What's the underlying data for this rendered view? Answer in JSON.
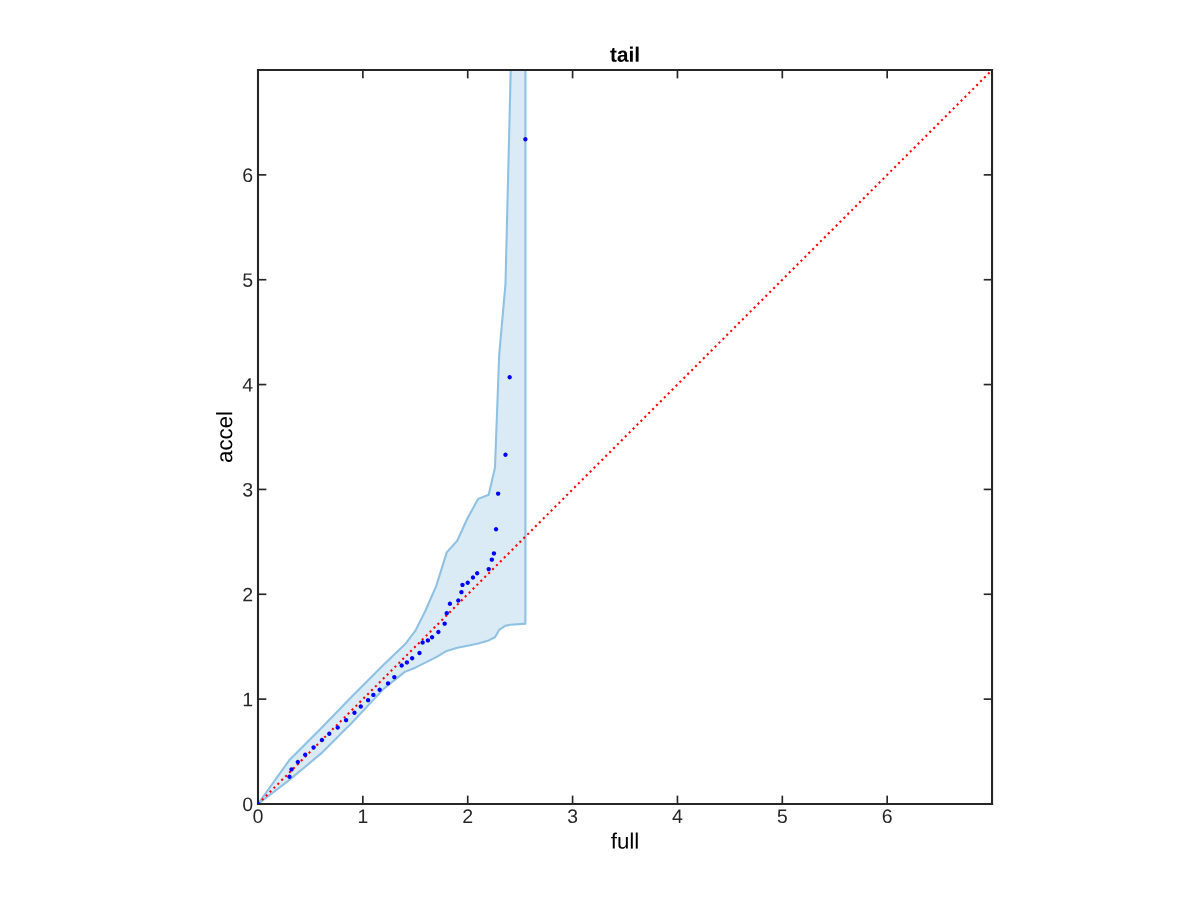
{
  "chart_data": {
    "type": "scatter",
    "title": "tail",
    "xlabel": "full",
    "ylabel": "accel",
    "xlim": [
      0,
      7
    ],
    "ylim": [
      0,
      7
    ],
    "xticks": [
      0,
      1,
      2,
      3,
      4,
      5,
      6
    ],
    "yticks": [
      0,
      1,
      2,
      3,
      4,
      5,
      6
    ],
    "grid": false,
    "legend": false,
    "series": [
      {
        "type": "line",
        "color": "#8fc1e3",
        "values": [
          null,
          null,
          null,
          null,
          null,
          null,
          null,
          null,
          null,
          null,
          null,
          null,
          null,
          null,
          null,
          null,
          null,
          null,
          null
        ],
        "x": [
          0,
          0.3,
          0.6,
          0.9,
          1.2,
          1.4,
          1.5,
          1.6,
          1.7,
          1.8,
          1.9,
          2.0,
          2.1,
          2.2,
          2.26,
          2.3,
          2.36,
          2.41,
          2.55
        ],
        "upper": [
          0,
          0.42,
          0.72,
          1.03,
          1.33,
          1.52,
          1.65,
          1.85,
          2.08,
          2.4,
          2.51,
          2.73,
          2.91,
          2.95,
          3.21,
          4.28,
          4.96,
          7,
          7
        ],
        "lower": [
          0,
          0.23,
          0.48,
          0.78,
          1.1,
          1.26,
          1.3,
          1.35,
          1.4,
          1.46,
          1.49,
          1.51,
          1.53,
          1.56,
          1.59,
          1.66,
          1.7,
          1.71,
          1.72
        ]
      },
      {
        "type": "line",
        "color": "#ff0000",
        "line_style": "dotted",
        "marker": "none",
        "x": [
          0,
          7
        ],
        "values": [
          0,
          7
        ]
      },
      {
        "color": "#0000ff",
        "marker": "circle",
        "x": [
          0,
          0.3,
          0.32,
          0.38,
          0.45,
          0.53,
          0.61,
          0.68,
          0.76,
          0.84,
          0.92,
          0.98,
          1.05,
          1.1,
          1.16,
          1.24,
          1.3,
          1.37,
          1.42,
          1.47,
          1.54,
          1.57,
          1.62,
          1.66,
          1.72,
          1.78,
          1.8,
          1.83,
          1.91,
          1.94,
          1.95,
          2.0,
          2.05,
          2.09,
          2.2,
          2.23,
          2.25,
          2.27,
          2.29,
          2.36,
          2.4,
          2.55
        ],
        "values": [
          0,
          0.26,
          0.33,
          0.4,
          0.47,
          0.54,
          0.61,
          0.67,
          0.73,
          0.8,
          0.87,
          0.93,
          0.99,
          1.04,
          1.09,
          1.15,
          1.21,
          1.32,
          1.35,
          1.39,
          1.44,
          1.54,
          1.56,
          1.59,
          1.64,
          1.72,
          1.82,
          1.91,
          1.94,
          2.02,
          2.09,
          2.11,
          2.16,
          2.2,
          2.24,
          2.33,
          2.39,
          2.62,
          2.96,
          3.33,
          4.07,
          6.34
        ]
      }
    ]
  }
}
